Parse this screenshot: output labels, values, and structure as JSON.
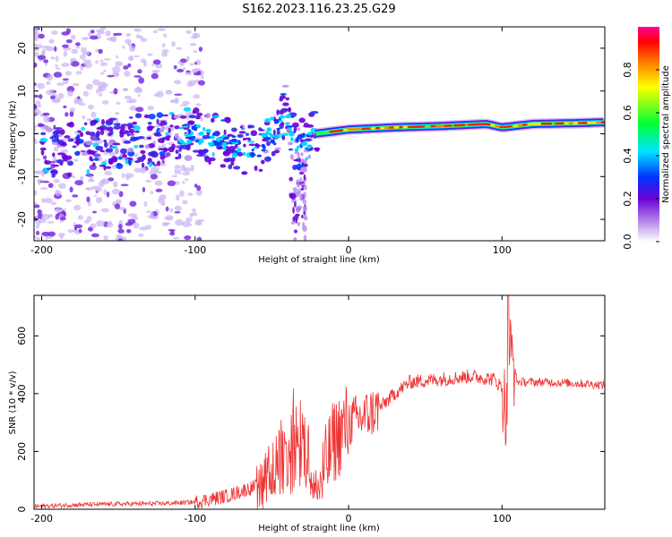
{
  "title": "S162.2023.116.23.25.G29",
  "chart_data": [
    {
      "type": "heatmap",
      "xlabel": "Height of straight line (km)",
      "ylabel": "Frequency (Hz)",
      "xlim": [
        -205,
        167
      ],
      "ylim": [
        -25,
        25
      ],
      "xticks": [
        -200,
        -100,
        0,
        100
      ],
      "yticks": [
        20,
        10,
        0,
        -10,
        -20
      ],
      "colorbar": {
        "label": "Normalized spectral amplitude",
        "range": [
          0,
          1
        ],
        "ticks": [
          "0.0",
          "0.2",
          "0.4",
          "0.6",
          "0.8"
        ]
      },
      "ridge": [
        {
          "x": -190,
          "f": -4
        },
        {
          "x": -150,
          "f": -2
        },
        {
          "x": -120,
          "f": -1
        },
        {
          "x": -100,
          "f": 0
        },
        {
          "x": -80,
          "f": -2
        },
        {
          "x": -60,
          "f": -4
        },
        {
          "x": -45,
          "f": 2
        },
        {
          "x": -40,
          "f": 6
        },
        {
          "x": -35,
          "f": -3
        },
        {
          "x": -28,
          "f": -2
        },
        {
          "x": -22,
          "f": 0
        },
        {
          "x": 0,
          "f": 1
        },
        {
          "x": 30,
          "f": 1.5
        },
        {
          "x": 60,
          "f": 1.8
        },
        {
          "x": 90,
          "f": 2.3
        },
        {
          "x": 100,
          "f": 1.5
        },
        {
          "x": 120,
          "f": 2.3
        },
        {
          "x": 150,
          "f": 2.5
        },
        {
          "x": 167,
          "f": 2.7
        }
      ]
    },
    {
      "type": "line",
      "xlabel": "Height of straight line (km)",
      "ylabel": "SNR (10 * v/v)",
      "xlim": [
        -205,
        167
      ],
      "ylim": [
        0,
        740
      ],
      "xticks": [
        -200,
        -100,
        0,
        100
      ],
      "yticks": [
        0,
        200,
        400,
        600
      ],
      "series": [
        {
          "color": "#ee3333",
          "x": [
            -205,
            -180,
            -150,
            -120,
            -100,
            -80,
            -60,
            -45,
            -35,
            -25,
            -20,
            -10,
            0,
            10,
            20,
            30,
            40,
            60,
            80,
            95,
            100,
            103,
            105,
            110,
            130,
            150,
            167
          ],
          "y": [
            10,
            15,
            18,
            20,
            25,
            45,
            80,
            160,
            230,
            150,
            60,
            230,
            300,
            320,
            350,
            400,
            440,
            450,
            460,
            450,
            420,
            330,
            560,
            440,
            440,
            435,
            430
          ]
        }
      ]
    }
  ]
}
